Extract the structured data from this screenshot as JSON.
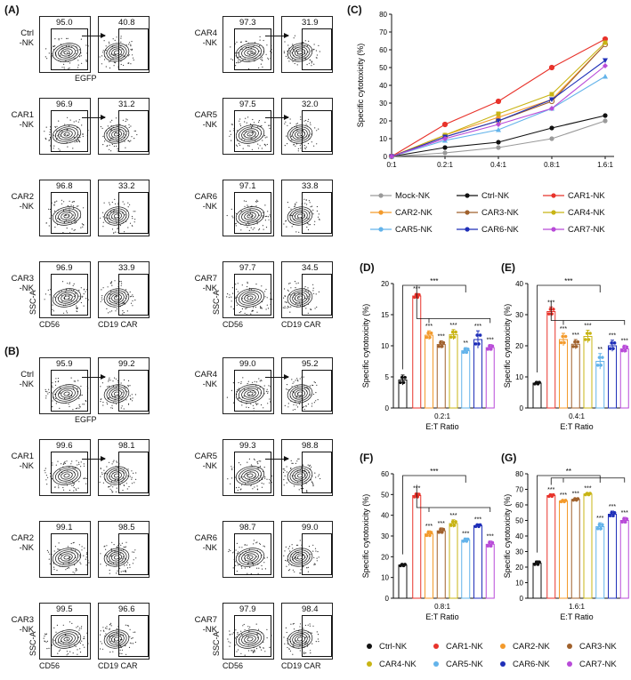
{
  "panels": {
    "A": "(A)",
    "B": "(B)",
    "C": "(C)",
    "D": "(D)",
    "E": "(E)",
    "F": "(F)",
    "G": "(G)"
  },
  "flow_axes": {
    "ssc": "SSC-A",
    "cd56": "CD56",
    "cd19car": "CD19 CAR",
    "egfp": "EGFP"
  },
  "flow_A": {
    "left": [
      {
        "label": "Ctrl\n-NK",
        "cd56": "95.0",
        "car": "40.8"
      },
      {
        "label": "CAR1\n-NK",
        "cd56": "96.9",
        "car": "31.2"
      },
      {
        "label": "CAR2\n-NK",
        "cd56": "96.8",
        "car": "33.2"
      },
      {
        "label": "CAR3\n-NK",
        "cd56": "96.9",
        "car": "33.9"
      }
    ],
    "right": [
      {
        "label": "CAR4\n-NK",
        "cd56": "97.3",
        "car": "31.9"
      },
      {
        "label": "CAR5\n-NK",
        "cd56": "97.5",
        "car": "32.0"
      },
      {
        "label": "CAR6\n-NK",
        "cd56": "97.1",
        "car": "33.8"
      },
      {
        "label": "CAR7\n-NK",
        "cd56": "97.7",
        "car": "34.5"
      }
    ]
  },
  "flow_B": {
    "left": [
      {
        "label": "Ctrl\n-NK",
        "cd56": "95.9",
        "car": "99.2"
      },
      {
        "label": "CAR1\n-NK",
        "cd56": "99.6",
        "car": "98.1"
      },
      {
        "label": "CAR2\n-NK",
        "cd56": "99.1",
        "car": "98.5"
      },
      {
        "label": "CAR3\n-NK",
        "cd56": "99.5",
        "car": "96.6"
      }
    ],
    "right": [
      {
        "label": "CAR4\n-NK",
        "cd56": "99.0",
        "car": "95.2"
      },
      {
        "label": "CAR5\n-NK",
        "cd56": "99.3",
        "car": "98.8"
      },
      {
        "label": "CAR6\n-NK",
        "cd56": "98.7",
        "car": "99.0"
      },
      {
        "label": "CAR7\n-NK",
        "cd56": "97.9",
        "car": "98.4"
      }
    ]
  },
  "colors": {
    "Mock-NK": "#9a9a9a",
    "Ctrl-NK": "#111111",
    "CAR1-NK": "#e8332b",
    "CAR2-NK": "#f39a2b",
    "CAR3-NK": "#a0612c",
    "CAR4-NK": "#c8b414",
    "CAR5-NK": "#63b3ea",
    "CAR6-NK": "#1f2fb8",
    "CAR7-NK": "#b84ad8"
  },
  "chart_data": [
    {
      "id": "C",
      "type": "line",
      "title": "",
      "xlabel": "E:T Ratio",
      "ylabel": "Specific cytotoxicity (%)",
      "categories": [
        "0:1",
        "0.2:1",
        "0.4:1",
        "0.8:1",
        "1.6:1"
      ],
      "ylim": [
        0,
        80
      ],
      "yticks": [
        0,
        10,
        20,
        30,
        40,
        50,
        60,
        70,
        80
      ],
      "series": [
        {
          "name": "Mock-NK",
          "marker": "circle",
          "values": [
            0,
            2,
            5,
            10,
            20
          ]
        },
        {
          "name": "Ctrl-NK",
          "marker": "circle",
          "values": [
            0,
            5,
            8,
            16,
            23
          ]
        },
        {
          "name": "CAR1-NK",
          "marker": "circle-open",
          "values": [
            0,
            18,
            31,
            50,
            66
          ]
        },
        {
          "name": "CAR2-NK",
          "marker": "diamond",
          "values": [
            0,
            12,
            22,
            32,
            63
          ]
        },
        {
          "name": "CAR3-NK",
          "marker": "circle-open",
          "values": [
            0,
            11,
            20,
            31,
            63
          ]
        },
        {
          "name": "CAR4-NK",
          "marker": "square",
          "values": [
            0,
            12,
            24,
            35,
            64
          ]
        },
        {
          "name": "CAR5-NK",
          "marker": "triangle",
          "values": [
            0,
            9,
            15,
            27,
            45
          ]
        },
        {
          "name": "CAR6-NK",
          "marker": "triangle-down",
          "values": [
            0,
            11,
            20,
            32,
            54
          ]
        },
        {
          "name": "CAR7-NK",
          "marker": "diamond",
          "values": [
            0,
            10,
            18,
            27,
            51
          ]
        }
      ]
    },
    {
      "id": "D",
      "type": "bar",
      "xlabel": "E:T Ratio",
      "xtick": "0.2:1",
      "ylabel": "Specific cytotoxicity (%)",
      "ylim": [
        0,
        20
      ],
      "yticks": [
        0,
        5,
        10,
        15,
        20
      ],
      "categories": [
        "Ctrl-NK",
        "CAR1-NK",
        "CAR2-NK",
        "CAR3-NK",
        "CAR4-NK",
        "CAR5-NK",
        "CAR6-NK",
        "CAR7-NK"
      ],
      "values": [
        4.5,
        18.0,
        11.7,
        10.2,
        11.8,
        9.2,
        11.0,
        9.7
      ],
      "errors": [
        0.8,
        0.4,
        0.7,
        0.6,
        0.8,
        0.5,
        1.4,
        0.5
      ],
      "sig": [
        "",
        "***",
        "***",
        "***",
        "***",
        "**",
        "***",
        "***"
      ],
      "bracket_top": "***"
    },
    {
      "id": "E",
      "type": "bar",
      "xlabel": "E:T Ratio",
      "xtick": "0.4:1",
      "ylabel": "Specific cytotoxicity (%)",
      "ylim": [
        0,
        40
      ],
      "yticks": [
        0,
        10,
        20,
        30,
        40
      ],
      "categories": [
        "Ctrl-NK",
        "CAR1-NK",
        "CAR2-NK",
        "CAR3-NK",
        "CAR4-NK",
        "CAR5-NK",
        "CAR6-NK",
        "CAR7-NK"
      ],
      "values": [
        8.0,
        31.0,
        22.0,
        20.5,
        23.0,
        15.0,
        20.0,
        19.0
      ],
      "errors": [
        0.5,
        1.5,
        2.0,
        1.5,
        2.0,
        2.5,
        1.8,
        1.2
      ],
      "sig": [
        "",
        "***",
        "***",
        "***",
        "***",
        "**",
        "***",
        "***"
      ],
      "bracket_top": "***"
    },
    {
      "id": "F",
      "type": "bar",
      "xlabel": "E:T Ratio",
      "xtick": "0.8:1",
      "ylabel": "Specific cytotoxicity (%)",
      "ylim": [
        0,
        60
      ],
      "yticks": [
        0,
        10,
        20,
        30,
        40,
        50,
        60
      ],
      "categories": [
        "Ctrl-NK",
        "CAR1-NK",
        "CAR2-NK",
        "CAR3-NK",
        "CAR4-NK",
        "CAR5-NK",
        "CAR6-NK",
        "CAR7-NK"
      ],
      "values": [
        16.0,
        49.5,
        31.0,
        32.5,
        36.0,
        28.0,
        35.0,
        26.0
      ],
      "errors": [
        0.6,
        1.2,
        1.5,
        1.4,
        1.8,
        1.0,
        0.8,
        1.6
      ],
      "sig": [
        "",
        "***",
        "***",
        "***",
        "***",
        "***",
        "***",
        "***"
      ],
      "bracket_top": "***"
    },
    {
      "id": "G",
      "type": "bar",
      "xlabel": "E:T Ratio",
      "xtick": "1.6:1",
      "ylabel": "Specific cytotoxicity (%)",
      "ylim": [
        0,
        80
      ],
      "yticks": [
        0,
        10,
        20,
        30,
        40,
        50,
        60,
        70,
        80
      ],
      "categories": [
        "Ctrl-NK",
        "CAR1-NK",
        "CAR2-NK",
        "CAR3-NK",
        "CAR4-NK",
        "CAR5-NK",
        "CAR6-NK",
        "CAR7-NK"
      ],
      "values": [
        22.5,
        66.0,
        62.5,
        63.5,
        67.0,
        46.0,
        54.0,
        50.0
      ],
      "errors": [
        1.5,
        1.0,
        0.8,
        0.9,
        0.8,
        2.5,
        2.0,
        2.0
      ],
      "sig": [
        "",
        "***",
        "***",
        "***",
        "***",
        "***",
        "***",
        "***"
      ],
      "bracket_top": "**"
    }
  ],
  "bar_legend": [
    "Ctrl-NK",
    "CAR1-NK",
    "CAR2-NK",
    "CAR3-NK",
    "CAR4-NK",
    "CAR5-NK",
    "CAR6-NK",
    "CAR7-NK"
  ]
}
